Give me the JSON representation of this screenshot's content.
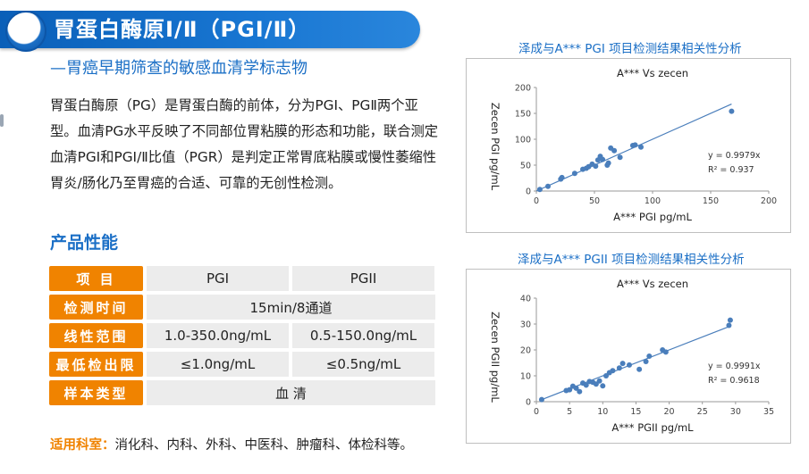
{
  "header": {
    "title": "胃蛋白酶原Ⅰ/Ⅱ（PGⅠ/Ⅱ）",
    "subtitle": "—胃癌早期筛查的敏感血清学标志物"
  },
  "description": "胃蛋白酶原（PG）是胃蛋白酶的前体，分为PGⅠ、PGⅡ两个亚型。血清PG水平反映了不同部位胃粘膜的形态和功能，联合测定血清PGI和PGⅠ/Ⅱ比值（PGR）是判定正常胃底粘膜或慢性萎缩性胃炎/肠化乃至胃癌的合适、可靠的无创性检测。",
  "performance": {
    "section_title": "产品性能",
    "rows": [
      {
        "label": "项 目",
        "cells": [
          "PGI",
          "PGII"
        ]
      },
      {
        "label": "检测时间",
        "cells": [
          "15min/8通道"
        ]
      },
      {
        "label": "线性范围",
        "cells": [
          "1.0-350.0ng/mL",
          "0.5-150.0ng/mL"
        ]
      },
      {
        "label": "最低检出限",
        "cells": [
          "≤1.0ng/mL",
          "≤0.5ng/mL"
        ]
      },
      {
        "label": "样本类型",
        "cells": [
          "血 清"
        ]
      }
    ]
  },
  "departments": {
    "label": "适用科室：",
    "text": "消化科、内科、外科、中医科、肿瘤科、体检科等。"
  },
  "chart_data": [
    {
      "type": "scatter",
      "caption": "泽成与A*** PGI 项目检测结果相关性分析",
      "title": "A*** Vs zecen",
      "xlabel": "A*** PGI pg/mL",
      "ylabel": "Zecen PGI pg/mL",
      "xlim": [
        0,
        200
      ],
      "ylim": [
        0,
        200
      ],
      "xticks": [
        0,
        50,
        100,
        150,
        200
      ],
      "yticks": [
        0,
        50,
        100,
        150,
        200
      ],
      "equation": "y = 0.9979x",
      "r2": "R² = 0.937",
      "trendline": {
        "x": [
          0,
          168
        ],
        "y": [
          0,
          168
        ]
      },
      "color": "#4a7ebb",
      "points": [
        {
          "x": 3,
          "y": 3
        },
        {
          "x": 10,
          "y": 9
        },
        {
          "x": 21,
          "y": 23
        },
        {
          "x": 22,
          "y": 26
        },
        {
          "x": 33,
          "y": 34
        },
        {
          "x": 40,
          "y": 42
        },
        {
          "x": 43,
          "y": 44
        },
        {
          "x": 45,
          "y": 47
        },
        {
          "x": 48,
          "y": 52
        },
        {
          "x": 51,
          "y": 48
        },
        {
          "x": 53,
          "y": 60
        },
        {
          "x": 55,
          "y": 67
        },
        {
          "x": 57,
          "y": 61
        },
        {
          "x": 61,
          "y": 50
        },
        {
          "x": 62,
          "y": 54
        },
        {
          "x": 64,
          "y": 83
        },
        {
          "x": 67,
          "y": 78
        },
        {
          "x": 72,
          "y": 65
        },
        {
          "x": 83,
          "y": 88
        },
        {
          "x": 85,
          "y": 89
        },
        {
          "x": 90,
          "y": 85
        },
        {
          "x": 168,
          "y": 154
        }
      ]
    },
    {
      "type": "scatter",
      "caption": "泽成与A*** PGII 项目检测结果相关性分析",
      "title": "A*** Vs zecen",
      "xlabel": "A*** PGII pg/mL",
      "ylabel": "Zecen PGII pg/mL",
      "xlim": [
        0,
        35
      ],
      "ylim": [
        0,
        40
      ],
      "xticks": [
        0,
        5,
        10,
        15,
        20,
        25,
        30,
        35
      ],
      "yticks": [
        0,
        10,
        20,
        30,
        40
      ],
      "equation": "y = 0.9991x",
      "r2": "R² = 0.9618",
      "trendline": {
        "x": [
          0.8,
          29.3
        ],
        "y": [
          0.8,
          29.3
        ]
      },
      "color": "#4a7ebb",
      "points": [
        {
          "x": 0.8,
          "y": 0.8
        },
        {
          "x": 4.5,
          "y": 4.3
        },
        {
          "x": 5.0,
          "y": 4.6
        },
        {
          "x": 5.5,
          "y": 6.0
        },
        {
          "x": 6.0,
          "y": 5.2
        },
        {
          "x": 6.5,
          "y": 3.9
        },
        {
          "x": 7.0,
          "y": 7.2
        },
        {
          "x": 7.5,
          "y": 6.4
        },
        {
          "x": 8.0,
          "y": 7.8
        },
        {
          "x": 8.5,
          "y": 7.5
        },
        {
          "x": 9.0,
          "y": 6.8
        },
        {
          "x": 9.5,
          "y": 8.0
        },
        {
          "x": 10.0,
          "y": 6.1
        },
        {
          "x": 10.5,
          "y": 10.0
        },
        {
          "x": 11.0,
          "y": 11.2
        },
        {
          "x": 11.5,
          "y": 12.0
        },
        {
          "x": 12.5,
          "y": 13.0
        },
        {
          "x": 13.0,
          "y": 14.8
        },
        {
          "x": 14.0,
          "y": 14.2
        },
        {
          "x": 15.5,
          "y": 12.5
        },
        {
          "x": 16.5,
          "y": 15.5
        },
        {
          "x": 17.0,
          "y": 17.6
        },
        {
          "x": 19.0,
          "y": 20.0
        },
        {
          "x": 19.5,
          "y": 19.2
        },
        {
          "x": 29.0,
          "y": 29.5
        },
        {
          "x": 29.2,
          "y": 31.5
        }
      ]
    }
  ]
}
